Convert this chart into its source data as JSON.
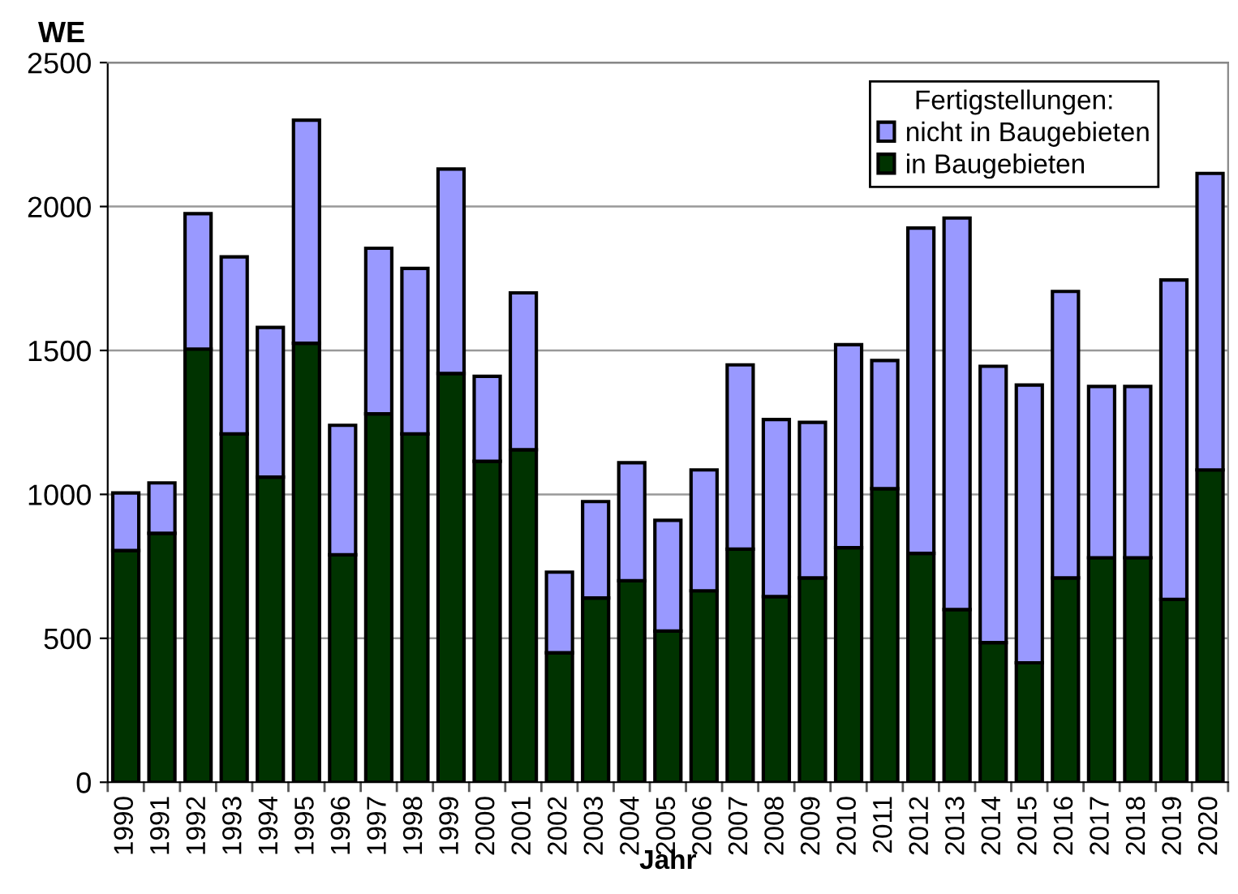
{
  "chart_data": {
    "type": "bar",
    "stacked": true,
    "xlabel": "Jahr",
    "ylabel": "WE",
    "legend_title": "Fertigstellungen:",
    "legend": "top right",
    "grid": "y",
    "categories": [
      "1990",
      "1991",
      "1992",
      "1993",
      "1994",
      "1995",
      "1996",
      "1997",
      "1998",
      "1999",
      "2000",
      "2001",
      "2002",
      "2003",
      "2004",
      "2005",
      "2006",
      "2007",
      "2008",
      "2009",
      "2010",
      "2011",
      "2012",
      "2013",
      "2014",
      "2015",
      "2016",
      "2017",
      "2018",
      "2019",
      "2020"
    ],
    "ylim": [
      0,
      2500
    ],
    "yticks": [
      0,
      500,
      1000,
      1500,
      2000,
      2500
    ],
    "series": [
      {
        "name": "in Baugebieten",
        "color": "#003300",
        "values": [
          805,
          865,
          1505,
          1210,
          1060,
          1525,
          790,
          1280,
          1210,
          1420,
          1115,
          1155,
          450,
          640,
          700,
          525,
          665,
          810,
          645,
          710,
          815,
          1020,
          795,
          600,
          485,
          415,
          710,
          780,
          780,
          635,
          1085
        ]
      },
      {
        "name": "nicht in Baugebieten",
        "color": "#9999ff",
        "values": [
          200,
          175,
          470,
          615,
          520,
          775,
          450,
          575,
          575,
          710,
          295,
          545,
          280,
          335,
          410,
          385,
          420,
          640,
          615,
          540,
          705,
          445,
          1130,
          1360,
          960,
          965,
          995,
          595,
          595,
          1110,
          1030
        ]
      }
    ]
  }
}
